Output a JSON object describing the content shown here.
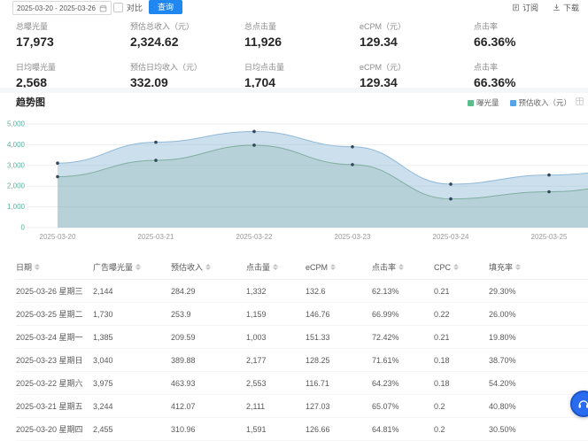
{
  "toolbar": {
    "date_range": "2025-03-20 - 2025-03-26",
    "compare_label": "对比",
    "query_button": "查询",
    "subscribe_label": "订阅",
    "download_label": "下载"
  },
  "summary": {
    "row1": [
      {
        "label": "总曝光量",
        "value": "17,973"
      },
      {
        "label": "预估总收入（元）",
        "value": "2,324.62"
      },
      {
        "label": "总点击量",
        "value": "11,926"
      },
      {
        "label": "eCPM（元）",
        "value": "129.34"
      },
      {
        "label": "点击率",
        "value": "66.36%"
      }
    ],
    "row2": [
      {
        "label": "日均曝光量",
        "value": "2,568"
      },
      {
        "label": "预估日均收入（元）",
        "value": "332.09"
      },
      {
        "label": "日均点击量",
        "value": "1,704"
      },
      {
        "label": "eCPM（元）",
        "value": "129.34"
      },
      {
        "label": "点击率",
        "value": "66.36%"
      }
    ]
  },
  "trend": {
    "title": "趋势图"
  },
  "chart_data": {
    "type": "area",
    "title": "趋势图",
    "x": [
      "2025-03-20",
      "2025-03-21",
      "2025-03-22",
      "2025-03-23",
      "2025-03-24",
      "2025-03-25",
      "2025-03-26"
    ],
    "series": [
      {
        "name": "曝光量",
        "axis": "left",
        "values": [
          2455,
          3244,
          3975,
          3040,
          1385,
          1730,
          2144
        ],
        "legend_color": "#5abd8b",
        "line_color": "#7fae9f",
        "area_color": "rgba(127,174,159,0.28)"
      },
      {
        "name": "预估收入（元）",
        "axis": "right",
        "values": [
          310.96,
          412.07,
          463.93,
          389.88,
          209.59,
          253.9,
          284.29
        ],
        "legend_color": "#55a4e8",
        "line_color": "#8fb9d8",
        "area_color": "rgba(143,185,216,0.45)"
      }
    ],
    "left_axis": {
      "min": 0,
      "max": 5000,
      "ticks": [
        "5,000",
        "4,000",
        "3,000",
        "2,000",
        "1,000",
        "0"
      ]
    },
    "right_axis": {
      "min": 0,
      "max": 500,
      "visible": false
    },
    "layout": {
      "grid": "horizontal",
      "legend_position": "top-right",
      "grid_color": "#ededed",
      "axis_label_color": "#57b29e",
      "x_label_color": "#999999",
      "marker_color": "#33475c"
    }
  },
  "table": {
    "columns": [
      "日期",
      "广告曝光量",
      "预估收入",
      "点击量",
      "eCPM",
      "点击率",
      "CPC",
      "填充率"
    ],
    "rows": [
      [
        "2025-03-26 星期三",
        "2,144",
        "284.29",
        "1,332",
        "132.6",
        "62.13%",
        "0.21",
        "29.30%"
      ],
      [
        "2025-03-25 星期二",
        "1,730",
        "253.9",
        "1,159",
        "146.76",
        "66.99%",
        "0.22",
        "26.00%"
      ],
      [
        "2025-03-24 星期一",
        "1,385",
        "209.59",
        "1,003",
        "151.33",
        "72.42%",
        "0.21",
        "19.80%"
      ],
      [
        "2025-03-23 星期日",
        "3,040",
        "389.88",
        "2,177",
        "128.25",
        "71.61%",
        "0.18",
        "38.70%"
      ],
      [
        "2025-03-22 星期六",
        "3,975",
        "463.93",
        "2,553",
        "116.71",
        "64.23%",
        "0.18",
        "54.20%"
      ],
      [
        "2025-03-21 星期五",
        "3,244",
        "412.07",
        "2,111",
        "127.03",
        "65.07%",
        "0.2",
        "40.80%"
      ],
      [
        "2025-03-20 星期四",
        "2,455",
        "310.96",
        "1,591",
        "126.66",
        "64.81%",
        "0.2",
        "30.50%"
      ]
    ]
  },
  "colors": {
    "accent_blue": "#2086f0",
    "axis_teal": "#57b29e"
  }
}
